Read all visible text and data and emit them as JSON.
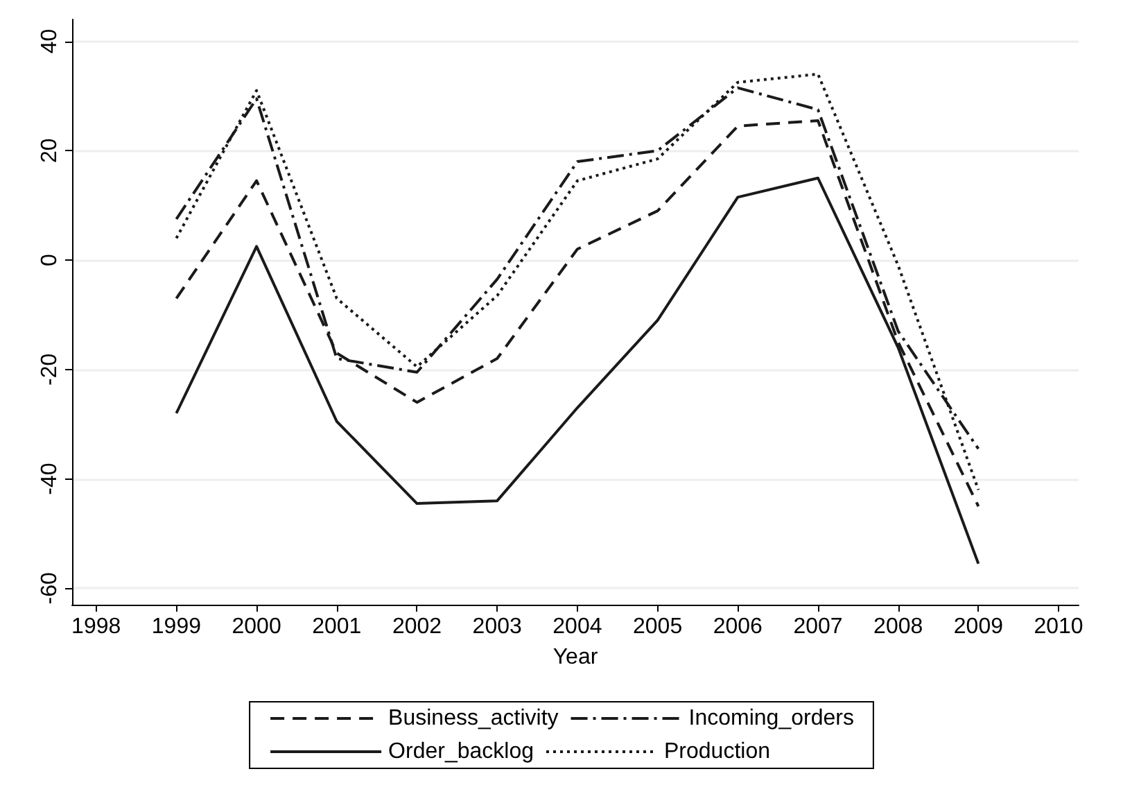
{
  "chart_data": {
    "type": "line",
    "xlabel": "Year",
    "x": [
      1999,
      2000,
      2001,
      2002,
      2003,
      2004,
      2005,
      2006,
      2007,
      2008,
      2009
    ],
    "xlim": [
      1997.7,
      2010.25
    ],
    "xticks": [
      1998,
      1999,
      2000,
      2001,
      2002,
      2003,
      2004,
      2005,
      2006,
      2007,
      2008,
      2009,
      2010
    ],
    "ylim": [
      -63,
      44
    ],
    "yticks": [
      -60,
      -40,
      -20,
      0,
      20,
      40
    ],
    "grid": "y",
    "legend": "bottom",
    "marker": "none",
    "series": [
      {
        "name": "Business_activity",
        "color": "#1a1a1a",
        "line_style": "dashed",
        "values": [
          -7,
          14.5,
          -17,
          -26,
          -18,
          2,
          9,
          24.5,
          25.5,
          -15,
          -45
        ]
      },
      {
        "name": "Incoming_orders",
        "color": "#1a1a1a",
        "line_style": "dashdot",
        "values": [
          7.5,
          29.5,
          -18,
          -20.5,
          -3.5,
          18,
          20,
          31.5,
          27.5,
          -13,
          -34.5
        ]
      },
      {
        "name": "Order_backlog",
        "color": "#1a1a1a",
        "line_style": "solid",
        "values": [
          -28,
          2.5,
          -29.5,
          -44.5,
          -44,
          -27,
          -11,
          11.5,
          15,
          -16,
          -55.5
        ]
      },
      {
        "name": "Production",
        "color": "#1a1a1a",
        "line_style": "dotted",
        "values": [
          4,
          31,
          -7,
          -19.5,
          -6.5,
          14.5,
          18.5,
          32.5,
          34,
          -1,
          -42
        ]
      }
    ]
  }
}
